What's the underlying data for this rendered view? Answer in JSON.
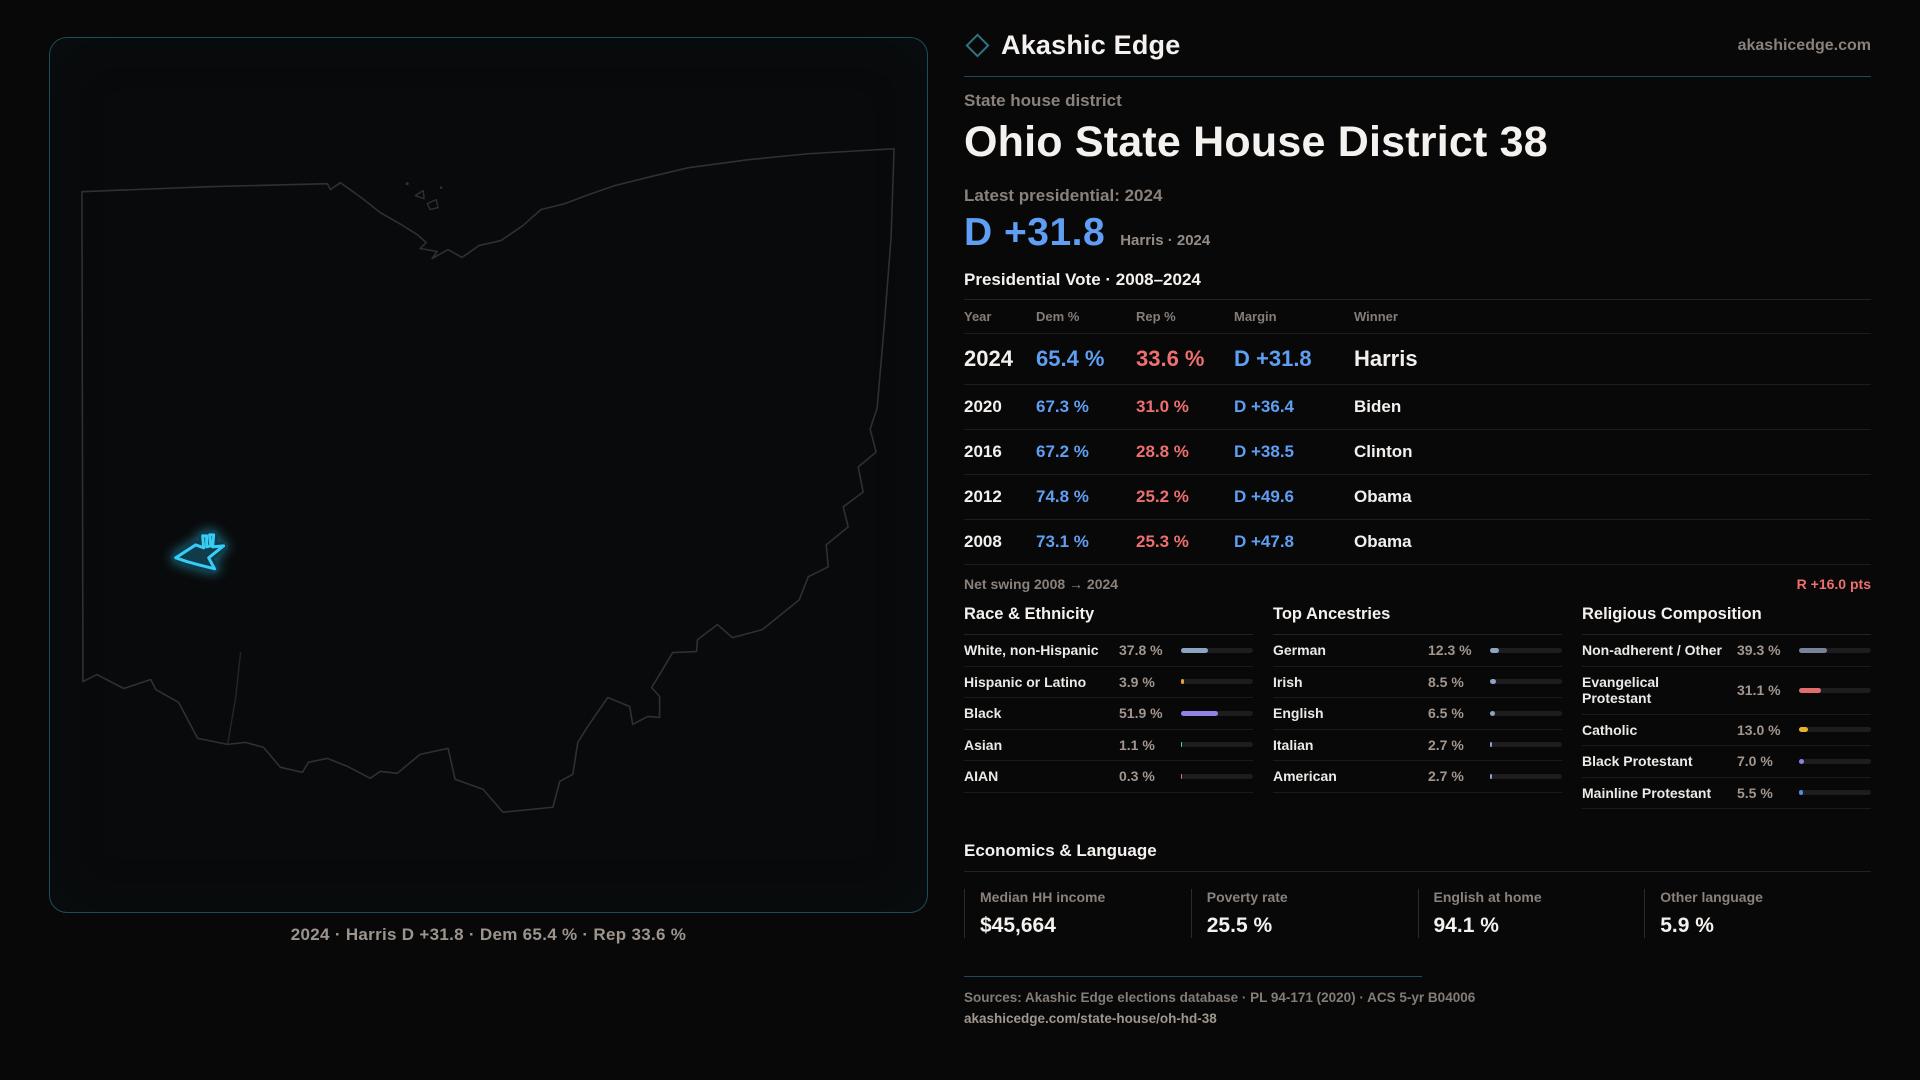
{
  "colors": {
    "accent": "#2e7386",
    "teal_line": "#1c4d59",
    "dem": "#5f9ef3",
    "rep": "#ed6f6f",
    "cyan": "#38cdf4"
  },
  "brand": {
    "name": "Akashic Edge",
    "domain": "akashicedge.com"
  },
  "map": {
    "caption": "2024 · Harris D +31.8 · Dem 65.4 % · Rep 33.6 %"
  },
  "header": {
    "kicker": "State house district",
    "title": "Ohio State House District 38",
    "latest_label": "Latest presidential: 2024",
    "margin_value": "D +31.8",
    "margin_note": "Harris · 2024"
  },
  "table": {
    "title": "Presidential Vote · 2008–2024",
    "columns": [
      "Year",
      "Dem %",
      "Rep %",
      "Margin",
      "Winner"
    ],
    "rows": [
      {
        "year": "2024",
        "dem": "65.4 %",
        "rep": "33.6 %",
        "margin": "D +31.8",
        "winner": "Harris"
      },
      {
        "year": "2020",
        "dem": "67.3 %",
        "rep": "31.0 %",
        "margin": "D +36.4",
        "winner": "Biden"
      },
      {
        "year": "2016",
        "dem": "67.2 %",
        "rep": "28.8 %",
        "margin": "D +38.5",
        "winner": "Clinton"
      },
      {
        "year": "2012",
        "dem": "74.8 %",
        "rep": "25.2 %",
        "margin": "D +49.6",
        "winner": "Obama"
      },
      {
        "year": "2008",
        "dem": "73.1 %",
        "rep": "25.3 %",
        "margin": "D +47.8",
        "winner": "Obama"
      }
    ]
  },
  "net_swing": {
    "label": "Net swing 2008 → 2024",
    "value": "R +16.0 pts"
  },
  "demographics": [
    {
      "title": "Race & Ethnicity",
      "rows": [
        {
          "label": "White, non-Hispanic",
          "value": "37.8 %",
          "pct": 37.8,
          "color": "#8ca3c2"
        },
        {
          "label": "Hispanic or Latino",
          "value": "3.9 %",
          "pct": 3.9,
          "color": "#e0a139"
        },
        {
          "label": "Black",
          "value": "51.9 %",
          "pct": 51.9,
          "color": "#9182e6"
        },
        {
          "label": "Asian",
          "value": "1.1 %",
          "pct": 1.1,
          "color": "#35dcb0"
        },
        {
          "label": "AIAN",
          "value": "0.3 %",
          "pct": 0.3,
          "color": "#d86f9f"
        }
      ]
    },
    {
      "title": "Top Ancestries",
      "rows": [
        {
          "label": "German",
          "value": "12.3 %",
          "pct": 12.3,
          "color": "#8ca3c2"
        },
        {
          "label": "Irish",
          "value": "8.5 %",
          "pct": 8.5,
          "color": "#8ca3c2"
        },
        {
          "label": "English",
          "value": "6.5 %",
          "pct": 6.5,
          "color": "#8ca3c2"
        },
        {
          "label": "Italian",
          "value": "2.7 %",
          "pct": 2.7,
          "color": "#8ca3c2"
        },
        {
          "label": "American",
          "value": "2.7 %",
          "pct": 2.7,
          "color": "#8ca3c2"
        }
      ]
    },
    {
      "title": "Religious Composition",
      "rows": [
        {
          "label": "Non-adherent / Other",
          "value": "39.3 %",
          "pct": 39.3,
          "color": "#78839a"
        },
        {
          "label": "Evangelical Protestant",
          "value": "31.1 %",
          "pct": 31.1,
          "color": "#e06e6e"
        },
        {
          "label": "Catholic",
          "value": "13.0 %",
          "pct": 13.0,
          "color": "#e3b431"
        },
        {
          "label": "Black Protestant",
          "value": "7.0 %",
          "pct": 7.0,
          "color": "#8f7de8"
        },
        {
          "label": "Mainline Protestant",
          "value": "5.5 %",
          "pct": 5.5,
          "color": "#4a8ce8"
        }
      ]
    }
  ],
  "economics": {
    "title": "Economics & Language",
    "stats": [
      {
        "label": "Median HH income",
        "value": "$45,664"
      },
      {
        "label": "Poverty rate",
        "value": "25.5 %"
      },
      {
        "label": "English at home",
        "value": "94.1 %"
      },
      {
        "label": "Other language",
        "value": "5.9 %"
      }
    ]
  },
  "footer": {
    "sources": "Sources: Akashic Edge elections database · PL 94-171 (2020) · ACS 5-yr B04006",
    "link": "akashicedge.com/state-house/oh-hd-38"
  }
}
